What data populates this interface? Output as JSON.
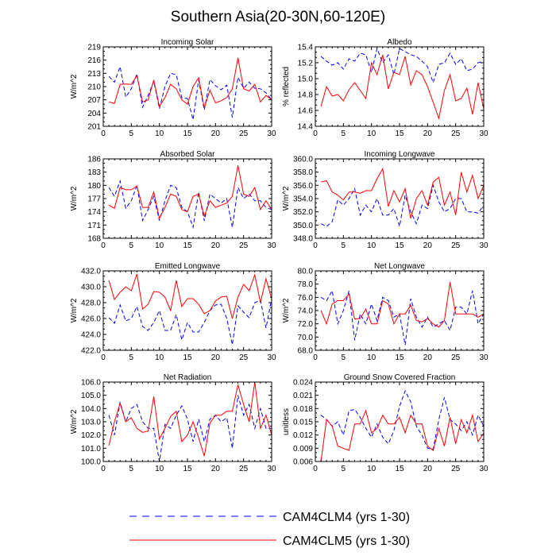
{
  "figure_title": "Southern Asia(20-30N,60-120E)",
  "legend": [
    {
      "label": "CAM4CLM4 (yrs 1-30)",
      "color": "#0000ff",
      "dashed": true
    },
    {
      "label": "CAM4CLM5 (yrs 1-30)",
      "color": "#ff0000",
      "dashed": false
    }
  ],
  "chart_data": [
    {
      "type": "line",
      "title": "Incoming Solar",
      "ylabel": "W/m^2",
      "xlim": [
        0,
        30
      ],
      "ylim": [
        201,
        219
      ],
      "xticks": [
        0,
        5,
        10,
        15,
        20,
        25,
        30
      ],
      "yticks": [
        201,
        204,
        207,
        210,
        213,
        216,
        219
      ],
      "ytick_labels": [
        "201",
        "204",
        "207",
        "210",
        "213",
        "216",
        "219"
      ],
      "x": [
        1,
        2,
        3,
        4,
        5,
        6,
        7,
        8,
        9,
        10,
        11,
        12,
        13,
        14,
        15,
        16,
        17,
        18,
        19,
        20,
        21,
        22,
        23,
        24,
        25,
        26,
        27,
        28,
        29,
        30
      ],
      "series": [
        {
          "name": "CAM4CLM4 (yrs 1-30)",
          "values": [
            212.3,
            211.0,
            214.5,
            207.6,
            209.5,
            212.9,
            205.3,
            208.0,
            211.2,
            205.0,
            210.0,
            213.0,
            212.7,
            207.5,
            207.3,
            202.5,
            211.5,
            204.7,
            211.6,
            210.2,
            209.3,
            210.3,
            203.0,
            212.1,
            209.6,
            211.0,
            209.6,
            209.5,
            208.6,
            207.0
          ]
        },
        {
          "name": "CAM4CLM5 (yrs 1-30)",
          "values": [
            206.5,
            206.2,
            210.5,
            210.6,
            210.5,
            212.5,
            206.5,
            207.0,
            211.5,
            205.5,
            207.5,
            210.5,
            209.5,
            207.0,
            206.0,
            210.0,
            212.0,
            205.2,
            209.2,
            206.3,
            206.8,
            207.5,
            209.5,
            216.5,
            209.5,
            209.0,
            210.5,
            206.5,
            208.0,
            207.0
          ]
        }
      ]
    },
    {
      "type": "line",
      "title": "Albedo",
      "ylabel": "% reflected",
      "xlim": [
        0,
        30
      ],
      "ylim": [
        14.4,
        15.4
      ],
      "xticks": [
        0,
        5,
        10,
        15,
        20,
        25,
        30
      ],
      "yticks": [
        14.4,
        14.6,
        14.8,
        15.0,
        15.2,
        15.4
      ],
      "ytick_labels": [
        "14.4",
        "14.6",
        "14.8",
        "15.0",
        "15.2",
        "15.4"
      ],
      "x": [
        1,
        2,
        3,
        4,
        5,
        6,
        7,
        8,
        9,
        10,
        11,
        12,
        13,
        14,
        15,
        16,
        17,
        18,
        19,
        20,
        21,
        22,
        23,
        24,
        25,
        26,
        27,
        28,
        29,
        30
      ],
      "series": [
        {
          "name": "CAM4CLM4 (yrs 1-30)",
          "values": [
            15.28,
            15.22,
            15.17,
            15.2,
            15.12,
            15.25,
            15.22,
            15.32,
            15.3,
            15.08,
            15.38,
            15.2,
            15.3,
            15.05,
            15.38,
            15.34,
            15.3,
            15.28,
            15.22,
            15.15,
            14.95,
            15.18,
            15.2,
            15.32,
            15.18,
            15.25,
            15.1,
            15.12,
            15.2,
            15.22
          ]
        },
        {
          "name": "CAM4CLM5 (yrs 1-30)",
          "values": [
            14.65,
            14.9,
            14.78,
            14.8,
            14.72,
            14.86,
            14.95,
            14.85,
            14.75,
            15.2,
            15.05,
            15.3,
            14.87,
            15.08,
            15.05,
            15.28,
            14.92,
            15.1,
            15.05,
            14.9,
            14.7,
            14.5,
            14.85,
            15.05,
            14.72,
            14.75,
            14.88,
            14.55,
            14.95,
            14.62
          ]
        }
      ]
    },
    {
      "type": "line",
      "title": "Absorbed Solar",
      "ylabel": "W/m^2",
      "xlim": [
        0,
        30
      ],
      "ylim": [
        168,
        186
      ],
      "xticks": [
        0,
        5,
        10,
        15,
        20,
        25,
        30
      ],
      "yticks": [
        168,
        171,
        174,
        177,
        180,
        183,
        186
      ],
      "ytick_labels": [
        "168",
        "171",
        "174",
        "177",
        "180",
        "183",
        "186"
      ],
      "x": [
        1,
        2,
        3,
        4,
        5,
        6,
        7,
        8,
        9,
        10,
        11,
        12,
        13,
        14,
        15,
        16,
        17,
        18,
        19,
        20,
        21,
        22,
        23,
        24,
        25,
        26,
        27,
        28,
        29,
        30
      ],
      "series": [
        {
          "name": "CAM4CLM4 (yrs 1-30)",
          "values": [
            179.5,
            177.5,
            181.0,
            174.8,
            176.5,
            180.0,
            172.0,
            174.5,
            177.5,
            172.0,
            176.5,
            180.0,
            179.5,
            175.0,
            174.0,
            170.5,
            178.5,
            172.0,
            178.0,
            177.0,
            176.0,
            177.0,
            170.5,
            179.5,
            177.0,
            178.0,
            176.5,
            176.5,
            175.0,
            174.5
          ]
        },
        {
          "name": "CAM4CLM5 (yrs 1-30)",
          "values": [
            175.5,
            174.8,
            179.5,
            179.0,
            179.0,
            179.8,
            175.0,
            175.0,
            178.5,
            172.5,
            175.0,
            178.0,
            177.5,
            174.5,
            174.0,
            177.5,
            178.0,
            173.0,
            176.5,
            175.0,
            175.5,
            176.0,
            177.5,
            184.5,
            178.0,
            177.5,
            179.5,
            174.5,
            176.5,
            174.5
          ]
        }
      ]
    },
    {
      "type": "line",
      "title": "Incoming Longwave",
      "ylabel": "W/m^2",
      "xlim": [
        0,
        30
      ],
      "ylim": [
        348.0,
        360.0
      ],
      "xticks": [
        0,
        5,
        10,
        15,
        20,
        25,
        30
      ],
      "yticks": [
        348.0,
        350.0,
        352.0,
        354.0,
        356.0,
        358.0,
        360.0
      ],
      "ytick_labels": [
        "348.0",
        "350.0",
        "352.0",
        "354.0",
        "356.0",
        "358.0",
        "360.0"
      ],
      "x": [
        1,
        2,
        3,
        4,
        5,
        6,
        7,
        8,
        9,
        10,
        11,
        12,
        13,
        14,
        15,
        16,
        17,
        18,
        19,
        20,
        21,
        22,
        23,
        24,
        25,
        26,
        27,
        28,
        29,
        30
      ],
      "series": [
        {
          "name": "CAM4CLM4 (yrs 1-30)",
          "values": [
            350.2,
            349.8,
            350.5,
            353.8,
            353.0,
            354.0,
            355.5,
            351.5,
            353.0,
            352.0,
            354.0,
            351.5,
            351.5,
            352.5,
            349.8,
            354.5,
            352.0,
            350.2,
            353.0,
            352.5,
            356.0,
            353.5,
            352.0,
            352.5,
            354.0,
            354.0,
            352.0,
            352.0,
            351.8,
            353.0
          ]
        },
        {
          "name": "CAM4CLM5 (yrs 1-30)",
          "values": [
            356.5,
            356.7,
            355.0,
            354.5,
            353.8,
            355.0,
            355.0,
            354.8,
            355.2,
            355.2,
            357.0,
            358.5,
            352.8,
            355.2,
            353.5,
            355.5,
            351.0,
            354.0,
            355.2,
            353.0,
            356.5,
            357.2,
            353.0,
            355.0,
            351.5,
            358.0,
            355.0,
            357.5,
            354.0,
            356.0
          ]
        }
      ]
    },
    {
      "type": "line",
      "title": "Emitted Longwave",
      "ylabel": "W/m^2",
      "xlim": [
        0,
        30
      ],
      "ylim": [
        422.0,
        432.0
      ],
      "xticks": [
        0,
        5,
        10,
        15,
        20,
        25,
        30
      ],
      "yticks": [
        422.0,
        424.0,
        426.0,
        428.0,
        430.0,
        432.0
      ],
      "ytick_labels": [
        "422.0",
        "424.0",
        "426.0",
        "428.0",
        "430.0",
        "432.0"
      ],
      "x": [
        1,
        2,
        3,
        4,
        5,
        6,
        7,
        8,
        9,
        10,
        11,
        12,
        13,
        14,
        15,
        16,
        17,
        18,
        19,
        20,
        21,
        22,
        23,
        24,
        25,
        26,
        27,
        28,
        29,
        30
      ],
      "series": [
        {
          "name": "CAM4CLM4 (yrs 1-30)",
          "values": [
            426.1,
            425.4,
            427.7,
            425.7,
            426.0,
            427.5,
            425.0,
            424.5,
            425.5,
            427.0,
            424.5,
            424.5,
            426.5,
            423.3,
            425.5,
            424.3,
            424.3,
            425.5,
            427.0,
            427.7,
            427.8,
            426.0,
            422.7,
            427.6,
            426.8,
            426.1,
            428.0,
            428.3,
            424.8,
            428.5
          ]
        },
        {
          "name": "CAM4CLM5 (yrs 1-30)",
          "values": [
            430.8,
            428.4,
            429.3,
            430.0,
            429.5,
            431.6,
            427.2,
            427.8,
            429.4,
            429.3,
            428.7,
            427.0,
            430.8,
            427.5,
            428.5,
            428.5,
            427.8,
            426.6,
            427.0,
            428.2,
            428.7,
            428.8,
            426.0,
            428.7,
            430.3,
            429.5,
            431.5,
            428.0,
            431.0,
            428.5
          ]
        }
      ]
    },
    {
      "type": "line",
      "title": "Net Longwave",
      "ylabel": "W/m^2",
      "xlim": [
        0,
        30
      ],
      "ylim": [
        68.0,
        80.0
      ],
      "xticks": [
        0,
        5,
        10,
        15,
        20,
        25,
        30
      ],
      "yticks": [
        68.0,
        70.0,
        72.0,
        74.0,
        76.0,
        78.0,
        80.0
      ],
      "ytick_labels": [
        "68.0",
        "70.0",
        "72.0",
        "74.0",
        "76.0",
        "78.0",
        "80.0"
      ],
      "x": [
        1,
        2,
        3,
        4,
        5,
        6,
        7,
        8,
        9,
        10,
        11,
        12,
        13,
        14,
        15,
        16,
        17,
        18,
        19,
        20,
        21,
        22,
        23,
        24,
        25,
        26,
        27,
        28,
        29,
        30
      ],
      "series": [
        {
          "name": "CAM4CLM4 (yrs 1-30)",
          "values": [
            76.0,
            75.5,
            77.0,
            72.0,
            74.0,
            77.0,
            69.5,
            73.5,
            72.0,
            75.0,
            72.5,
            76.0,
            75.5,
            73.0,
            73.5,
            68.8,
            75.8,
            73.0,
            71.5,
            73.0,
            71.5,
            72.0,
            72.5,
            71.0,
            74.5,
            74.5,
            73.5,
            77.0,
            72.0,
            73.5
          ]
        },
        {
          "name": "CAM4CLM5 (yrs 1-30)",
          "values": [
            74.0,
            72.0,
            75.0,
            75.5,
            75.5,
            76.5,
            72.7,
            72.8,
            74.2,
            72.0,
            72.0,
            75.5,
            75.0,
            72.0,
            73.5,
            73.5,
            74.8,
            72.5,
            72.3,
            72.8,
            72.0,
            71.5,
            72.5,
            78.3,
            73.5,
            73.5,
            73.5,
            73.5,
            73.0,
            73.5
          ]
        }
      ]
    },
    {
      "type": "line",
      "title": "Net Radiation",
      "ylabel": "W/m^2",
      "xlim": [
        0,
        30
      ],
      "ylim": [
        100.0,
        106.0
      ],
      "xticks": [
        0,
        5,
        10,
        15,
        20,
        25,
        30
      ],
      "yticks": [
        100.0,
        101.0,
        102.0,
        103.0,
        104.0,
        105.0,
        106.0
      ],
      "ytick_labels": [
        "100.0",
        "101.0",
        "102.0",
        "103.0",
        "104.0",
        "105.0",
        "106.0"
      ],
      "x": [
        1,
        2,
        3,
        4,
        5,
        6,
        7,
        8,
        9,
        10,
        11,
        12,
        13,
        14,
        15,
        16,
        17,
        18,
        19,
        20,
        21,
        22,
        23,
        24,
        25,
        26,
        27,
        28,
        29,
        30
      ],
      "series": [
        {
          "name": "CAM4CLM4 (yrs 1-30)",
          "values": [
            103.5,
            102.0,
            104.5,
            103.0,
            104.0,
            104.3,
            103.0,
            102.5,
            102.5,
            100.0,
            102.8,
            102.5,
            103.5,
            104.2,
            103.2,
            101.5,
            103.2,
            101.5,
            103.2,
            103.5,
            103.0,
            103.3,
            101.0,
            105.0,
            103.5,
            104.3,
            102.5,
            104.0,
            102.5,
            102.5
          ]
        },
        {
          "name": "CAM4CLM5 (yrs 1-30)",
          "values": [
            101.2,
            103.0,
            104.4,
            103.0,
            103.3,
            102.5,
            102.2,
            102.3,
            104.9,
            101.7,
            102.5,
            103.4,
            103.8,
            101.5,
            102.0,
            103.0,
            101.8,
            100.4,
            102.9,
            103.5,
            103.5,
            103.8,
            103.8,
            105.8,
            104.3,
            103.0,
            106.0,
            102.5,
            103.5,
            102.0
          ]
        }
      ]
    },
    {
      "type": "line",
      "title": "Ground Snow Covered Fraction",
      "ylabel": "unitless",
      "xlim": [
        0,
        30
      ],
      "ylim": [
        0.006,
        0.024
      ],
      "xticks": [
        0,
        5,
        10,
        15,
        20,
        25,
        30
      ],
      "yticks": [
        0.006,
        0.009,
        0.012,
        0.015,
        0.018,
        0.021,
        0.024
      ],
      "ytick_labels": [
        "0.006",
        "0.009",
        "0.012",
        "0.015",
        "0.018",
        "0.021",
        "0.024"
      ],
      "x": [
        1,
        2,
        3,
        4,
        5,
        6,
        7,
        8,
        9,
        10,
        11,
        12,
        13,
        14,
        15,
        16,
        17,
        18,
        19,
        20,
        21,
        22,
        23,
        24,
        25,
        26,
        27,
        28,
        29,
        30
      ],
      "series": [
        {
          "name": "CAM4CLM4 (yrs 1-30)",
          "values": [
            0.0165,
            0.0155,
            0.014,
            0.015,
            0.012,
            0.0175,
            0.0178,
            0.016,
            0.0135,
            0.0115,
            0.0145,
            0.0115,
            0.01,
            0.013,
            0.0185,
            0.022,
            0.0195,
            0.014,
            0.012,
            0.009,
            0.0088,
            0.0155,
            0.0205,
            0.0155,
            0.0145,
            0.013,
            0.015,
            0.012,
            0.0165,
            0.014
          ]
        },
        {
          "name": "CAM4CLM5 (yrs 1-30)",
          "values": [
            0.006,
            0.0155,
            0.014,
            0.0095,
            0.009,
            0.0085,
            0.0145,
            0.0145,
            0.0175,
            0.0125,
            0.0135,
            0.0165,
            0.0145,
            0.0145,
            0.016,
            0.0125,
            0.0165,
            0.0145,
            0.0145,
            0.0095,
            0.0085,
            0.0135,
            0.0095,
            0.016,
            0.01,
            0.0155,
            0.0125,
            0.0165,
            0.0105,
            0.0125
          ]
        }
      ]
    }
  ]
}
